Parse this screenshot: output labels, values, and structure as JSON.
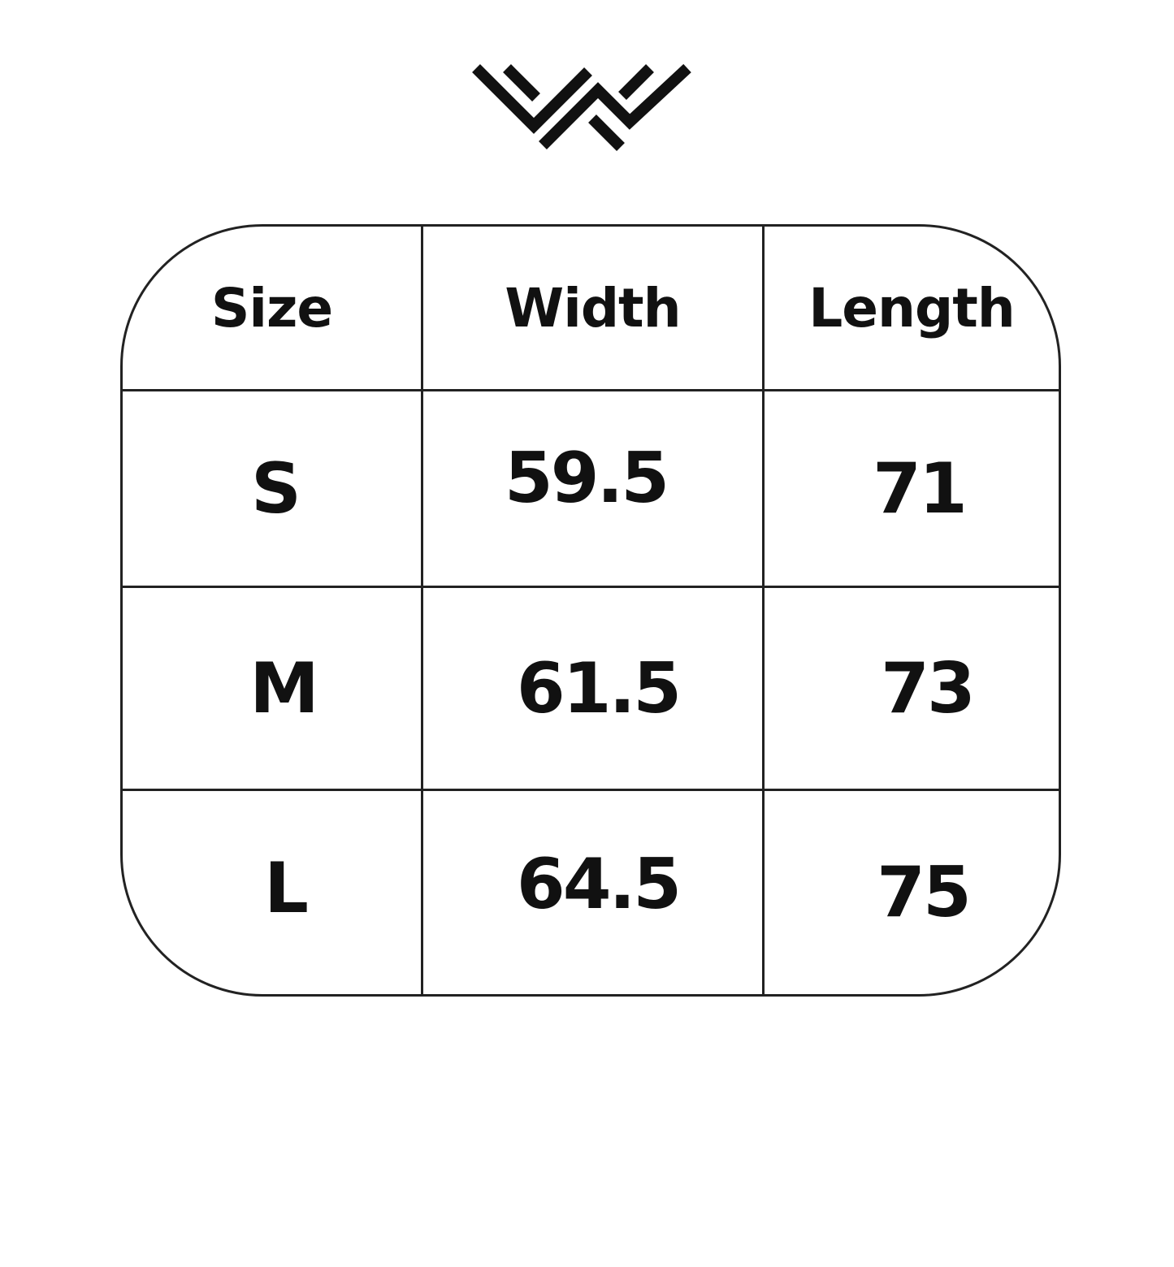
{
  "logo": {
    "name": "brand-logo",
    "color": "#111111"
  },
  "table": {
    "headers": [
      "Size",
      "Width",
      "Length"
    ],
    "rows": [
      [
        "S",
        "59.5",
        "71"
      ],
      [
        "M",
        "61.5",
        "73"
      ],
      [
        "L",
        "64.5",
        "75"
      ]
    ]
  }
}
